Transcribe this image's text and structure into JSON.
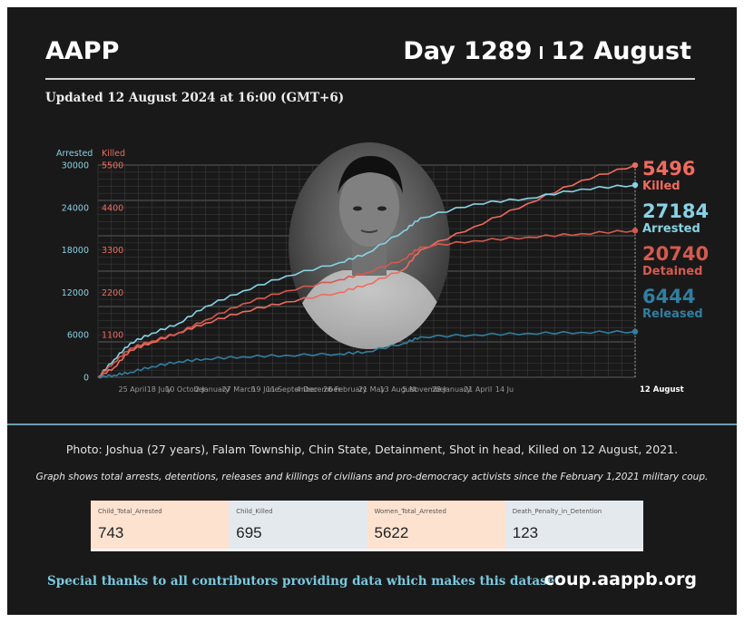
{
  "header": {
    "brand": "AAPP",
    "day": "Day 1289",
    "date": "12 August",
    "updated": "Updated 12 August 2024 at 16:00 (GMT+6)"
  },
  "chart_data": {
    "type": "line",
    "x_tick_labels": [
      "25 April",
      "18 July",
      "10 October",
      "2 January",
      "27 March",
      "19 June",
      "11 September",
      "4 December",
      "26 February",
      "21 May",
      "13 August",
      "5 November",
      "28 January",
      "21 April",
      "14 Ju"
    ],
    "x_end_label": "12 August",
    "y_left": {
      "label": "Arrested",
      "ticks": [
        0,
        6000,
        12000,
        18000,
        24000,
        30000
      ],
      "range": [
        0,
        30000
      ]
    },
    "y_right": {
      "label": "Killed",
      "ticks": [
        0,
        1100,
        2200,
        3300,
        4400,
        5500
      ],
      "range": [
        0,
        5500
      ]
    },
    "x_progress": [
      0,
      0.03,
      0.06,
      0.1,
      0.15,
      0.2,
      0.27,
      0.35,
      0.45,
      0.5,
      0.57,
      0.6,
      0.7,
      0.8,
      0.9,
      1.0
    ],
    "series": [
      {
        "name": "Killed",
        "axis": "right",
        "color": "#f06b5f",
        "total": 5496,
        "label": "Killed",
        "values": [
          0,
          250,
          700,
          900,
          1150,
          1400,
          1700,
          1950,
          2200,
          2400,
          2800,
          3300,
          3900,
          4500,
          5100,
          5496
        ]
      },
      {
        "name": "Arrested",
        "axis": "left",
        "color": "#86d3e6",
        "total": 27184,
        "label": "Arrested",
        "values": [
          0,
          2500,
          4800,
          6200,
          7600,
          10000,
          12200,
          14300,
          16200,
          17500,
          20700,
          22500,
          24500,
          25300,
          26600,
          27184
        ]
      },
      {
        "name": "Detained",
        "axis": "left",
        "color": "#d55a4e",
        "total": 20740,
        "label": "Detained",
        "values": [
          0,
          2100,
          4100,
          5100,
          6300,
          8100,
          10400,
          12200,
          13800,
          14800,
          16700,
          18400,
          19300,
          19800,
          20300,
          20740
        ]
      },
      {
        "name": "Released",
        "axis": "left",
        "color": "#2f7fa0",
        "total": 6444,
        "label": "Released",
        "values": [
          0,
          300,
          700,
          1500,
          2200,
          2600,
          2900,
          3100,
          3300,
          3600,
          4800,
          5700,
          6000,
          6200,
          6350,
          6444
        ]
      }
    ]
  },
  "photo_caption": "Photo: Joshua (27 years), Falam Township, Chin State, Detainment, Shot in head, Killed on 12 August, 2021.",
  "graph_note": "Graph shows total arrests, detentions, releases and killings of civilians and pro-democracy activists since the February 1,2021 military coup.",
  "stats": [
    {
      "label": "Child_Total_Arrested",
      "value": "743",
      "tone": "#fde2cf"
    },
    {
      "label": "Child_Killed",
      "value": "695",
      "tone": "#e4e9ee"
    },
    {
      "label": "Women_Total_Arrested",
      "value": "5622",
      "tone": "#fde2cf"
    },
    {
      "label": "Death_Penalty_in_Detention",
      "value": "123",
      "tone": "#e4e9ee"
    }
  ],
  "footer": {
    "thanks": "Special thanks to all contributors providing data which makes this dataset.",
    "site": "coup.aappb.org"
  },
  "colors": {
    "background": "#1a1919",
    "accent_blue": "#79c9df",
    "accent_red": "#f06b5f"
  }
}
